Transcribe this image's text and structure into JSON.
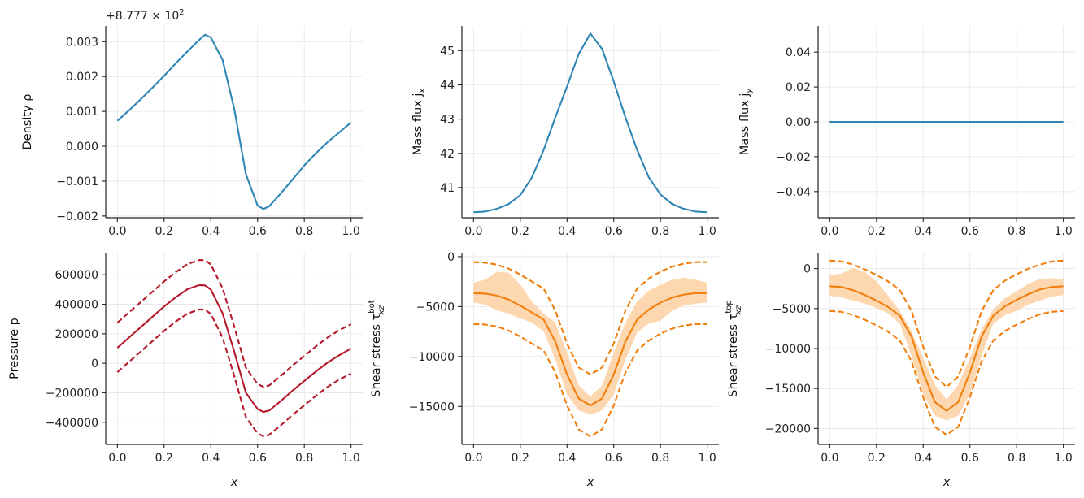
{
  "chart_data": [
    {
      "type": "line",
      "panel": "top-left",
      "ylabel": "Density ρ",
      "offset_text": "+8.777 × 10",
      "offset_exp": "2",
      "xlim": [
        -0.05,
        1.05
      ],
      "ylim": [
        -0.00205,
        0.00345
      ],
      "xticks": [
        0.0,
        0.2,
        0.4,
        0.6,
        0.8,
        1.0
      ],
      "xtick_labels": [
        "0.0",
        "0.2",
        "0.4",
        "0.6",
        "0.8",
        "1.0"
      ],
      "yticks": [
        -0.002,
        -0.001,
        0.0,
        0.001,
        0.002,
        0.003
      ],
      "ytick_labels": [
        "−0.002",
        "−0.001",
        "0.000",
        "0.001",
        "0.002",
        "0.003"
      ],
      "grid": true,
      "series": [
        {
          "style": "solid",
          "color": "#2e86b4",
          "x": [
            0.0,
            0.05,
            0.1,
            0.15,
            0.2,
            0.25,
            0.3,
            0.35,
            0.375,
            0.4,
            0.45,
            0.5,
            0.55,
            0.6,
            0.625,
            0.65,
            0.7,
            0.75,
            0.8,
            0.85,
            0.9,
            0.95,
            1.0
          ],
          "y": [
            0.00073,
            0.00103,
            0.00135,
            0.00168,
            0.00202,
            0.00238,
            0.00272,
            0.00305,
            0.0032,
            0.00312,
            0.00248,
            0.00108,
            -0.0008,
            -0.0017,
            -0.0018,
            -0.00172,
            -0.00135,
            -0.00095,
            -0.00055,
            -0.0002,
            0.00012,
            0.0004,
            0.00068
          ]
        }
      ]
    },
    {
      "type": "line",
      "panel": "top-middle",
      "ylabel": "Mass flux j",
      "ylabel_sub": "x",
      "xlim": [
        -0.05,
        1.05
      ],
      "ylim": [
        40.12,
        45.72
      ],
      "xticks": [
        0.0,
        0.2,
        0.4,
        0.6,
        0.8,
        1.0
      ],
      "xtick_labels": [
        "0.0",
        "0.2",
        "0.4",
        "0.6",
        "0.8",
        "1.0"
      ],
      "yticks": [
        41,
        42,
        43,
        44,
        45
      ],
      "ytick_labels": [
        "41",
        "42",
        "43",
        "44",
        "45"
      ],
      "grid": true,
      "series": [
        {
          "style": "solid",
          "color": "#2e86b4",
          "x": [
            0.0,
            0.05,
            0.1,
            0.15,
            0.2,
            0.25,
            0.3,
            0.35,
            0.4,
            0.45,
            0.5,
            0.55,
            0.6,
            0.65,
            0.7,
            0.75,
            0.8,
            0.85,
            0.9,
            0.95,
            1.0
          ],
          "y": [
            40.28,
            40.3,
            40.38,
            40.52,
            40.78,
            41.3,
            42.1,
            43.05,
            43.95,
            44.9,
            45.5,
            45.05,
            44.1,
            43.05,
            42.1,
            41.3,
            40.8,
            40.52,
            40.38,
            40.3,
            40.28
          ]
        }
      ]
    },
    {
      "type": "line",
      "panel": "top-right",
      "ylabel": "Mass flux j",
      "ylabel_sub": "y",
      "xlim": [
        -0.05,
        1.05
      ],
      "ylim": [
        -0.055,
        0.055
      ],
      "xticks": [
        0.0,
        0.2,
        0.4,
        0.6,
        0.8,
        1.0
      ],
      "xtick_labels": [
        "0.0",
        "0.2",
        "0.4",
        "0.6",
        "0.8",
        "1.0"
      ],
      "yticks": [
        -0.04,
        -0.02,
        0.0,
        0.02,
        0.04
      ],
      "ytick_labels": [
        "−0.04",
        "−0.02",
        "0.00",
        "0.02",
        "0.04"
      ],
      "grid": true,
      "series": [
        {
          "style": "solid",
          "color": "#2e86b4",
          "x": [
            0.0,
            1.0
          ],
          "y": [
            0.0,
            0.0
          ]
        }
      ]
    },
    {
      "type": "line",
      "panel": "bottom-left",
      "ylabel": "Pressure p",
      "xlabel": "x",
      "xlim": [
        -0.05,
        1.05
      ],
      "ylim": [
        -550000,
        750000
      ],
      "xticks": [
        0.0,
        0.2,
        0.4,
        0.6,
        0.8,
        1.0
      ],
      "xtick_labels": [
        "0.0",
        "0.2",
        "0.4",
        "0.6",
        "0.8",
        "1.0"
      ],
      "yticks": [
        -400000,
        -200000,
        0,
        200000,
        400000,
        600000
      ],
      "ytick_labels": [
        "−400000",
        "−200000",
        "0",
        "200000",
        "400000",
        "600000"
      ],
      "grid": true,
      "series": [
        {
          "style": "solid",
          "color": "#b5182b",
          "x": [
            0.0,
            0.05,
            0.1,
            0.15,
            0.2,
            0.25,
            0.3,
            0.35,
            0.375,
            0.4,
            0.45,
            0.5,
            0.55,
            0.6,
            0.625,
            0.65,
            0.7,
            0.75,
            0.8,
            0.85,
            0.9,
            0.95,
            1.0
          ],
          "y": [
            105000,
            175000,
            245000,
            315000,
            385000,
            448000,
            502000,
            530000,
            528000,
            500000,
            340000,
            80000,
            -200000,
            -310000,
            -330000,
            -320000,
            -255000,
            -185000,
            -120000,
            -55000,
            5000,
            55000,
            100000
          ]
        },
        {
          "style": "dashed",
          "color": "#b5182b",
          "x": [
            0.0,
            0.05,
            0.1,
            0.15,
            0.2,
            0.25,
            0.3,
            0.35,
            0.375,
            0.4,
            0.45,
            0.5,
            0.55,
            0.6,
            0.625,
            0.65,
            0.7,
            0.75,
            0.8,
            0.85,
            0.9,
            0.95,
            1.0
          ],
          "y": [
            275000,
            345000,
            415000,
            485000,
            555000,
            618000,
            672000,
            700000,
            698000,
            670000,
            510000,
            250000,
            -30000,
            -140000,
            -160000,
            -150000,
            -85000,
            -15000,
            50000,
            115000,
            175000,
            225000,
            265000
          ]
        },
        {
          "style": "dashed",
          "color": "#b5182b",
          "x": [
            0.0,
            0.05,
            0.1,
            0.15,
            0.2,
            0.25,
            0.3,
            0.35,
            0.375,
            0.4,
            0.45,
            0.5,
            0.55,
            0.6,
            0.625,
            0.65,
            0.7,
            0.75,
            0.8,
            0.85,
            0.9,
            0.95,
            1.0
          ],
          "y": [
            -60000,
            10000,
            80000,
            150000,
            220000,
            283000,
            337000,
            365000,
            363000,
            335000,
            175000,
            -85000,
            -365000,
            -475000,
            -495000,
            -485000,
            -420000,
            -350000,
            -285000,
            -220000,
            -160000,
            -110000,
            -70000
          ]
        }
      ]
    },
    {
      "type": "line",
      "panel": "bottom-middle",
      "ylabel": "Shear stress τ",
      "ylabel_sub": "xz",
      "ylabel_sup": "bot",
      "xlabel": "x",
      "xlim": [
        -0.05,
        1.05
      ],
      "ylim": [
        -18800,
        400
      ],
      "xticks": [
        0.0,
        0.2,
        0.4,
        0.6,
        0.8,
        1.0
      ],
      "xtick_labels": [
        "0.0",
        "0.2",
        "0.4",
        "0.6",
        "0.8",
        "1.0"
      ],
      "yticks": [
        -15000,
        -10000,
        -5000,
        0
      ],
      "ytick_labels": [
        "−15000",
        "−10000",
        "−5000",
        "0"
      ],
      "grid": true,
      "band": {
        "color": "#fdd0a2",
        "x": [
          0.0,
          0.05,
          0.1,
          0.15,
          0.2,
          0.25,
          0.3,
          0.35,
          0.4,
          0.45,
          0.5,
          0.55,
          0.6,
          0.65,
          0.7,
          0.75,
          0.8,
          0.85,
          0.9,
          0.95,
          1.0
        ],
        "upper": [
          -2600,
          -2300,
          -1500,
          -1600,
          -2800,
          -4500,
          -5700,
          -6600,
          -9600,
          -12900,
          -14000,
          -12900,
          -9600,
          -6600,
          -4500,
          -3400,
          -2800,
          -2300,
          -2100,
          -2300,
          -2600
        ],
        "lower": [
          -4600,
          -4800,
          -5400,
          -5700,
          -6200,
          -6600,
          -7500,
          -10300,
          -13800,
          -15400,
          -15800,
          -15400,
          -13800,
          -10300,
          -7600,
          -6700,
          -6400,
          -5400,
          -4900,
          -4700,
          -4600
        ]
      },
      "series": [
        {
          "style": "solid",
          "color": "#f07f0e",
          "x": [
            0.0,
            0.05,
            0.1,
            0.15,
            0.2,
            0.25,
            0.3,
            0.35,
            0.4,
            0.45,
            0.5,
            0.55,
            0.6,
            0.65,
            0.7,
            0.75,
            0.8,
            0.85,
            0.9,
            0.95,
            1.0
          ],
          "y": [
            -3650,
            -3700,
            -3900,
            -4300,
            -4900,
            -5600,
            -6300,
            -8500,
            -11800,
            -14200,
            -14900,
            -14200,
            -11800,
            -8500,
            -6300,
            -5300,
            -4600,
            -4100,
            -3800,
            -3650,
            -3650
          ]
        },
        {
          "style": "dashed",
          "color": "#f07f0e",
          "x": [
            0.0,
            0.05,
            0.1,
            0.15,
            0.2,
            0.25,
            0.3,
            0.35,
            0.4,
            0.45,
            0.5,
            0.55,
            0.6,
            0.65,
            0.7,
            0.75,
            0.8,
            0.85,
            0.9,
            0.95,
            1.0
          ],
          "y": [
            -550,
            -600,
            -800,
            -1200,
            -1800,
            -2500,
            -3200,
            -5400,
            -8700,
            -11100,
            -11800,
            -11100,
            -8700,
            -5400,
            -3200,
            -2200,
            -1500,
            -1000,
            -700,
            -550,
            -550
          ]
        },
        {
          "style": "dashed",
          "color": "#f07f0e",
          "x": [
            0.0,
            0.05,
            0.1,
            0.15,
            0.2,
            0.25,
            0.3,
            0.35,
            0.4,
            0.45,
            0.5,
            0.55,
            0.6,
            0.65,
            0.7,
            0.75,
            0.8,
            0.85,
            0.9,
            0.95,
            1.0
          ],
          "y": [
            -6750,
            -6800,
            -7000,
            -7400,
            -8000,
            -8700,
            -9400,
            -11600,
            -14900,
            -17300,
            -18000,
            -17300,
            -14900,
            -11600,
            -9400,
            -8400,
            -7700,
            -7200,
            -6900,
            -6750,
            -6750
          ]
        }
      ]
    },
    {
      "type": "line",
      "panel": "bottom-right",
      "ylabel": "Shear stress τ",
      "ylabel_sub": "xz",
      "ylabel_sup": "top",
      "xlabel": "x",
      "xlim": [
        -0.05,
        1.05
      ],
      "ylim": [
        -22000,
        2000
      ],
      "xticks": [
        0.0,
        0.2,
        0.4,
        0.6,
        0.8,
        1.0
      ],
      "xtick_labels": [
        "0.0",
        "0.2",
        "0.4",
        "0.6",
        "0.8",
        "1.0"
      ],
      "yticks": [
        -20000,
        -15000,
        -10000,
        -5000,
        0
      ],
      "ytick_labels": [
        "−20000",
        "−15000",
        "−10000",
        "−5000",
        "0"
      ],
      "grid": true,
      "band": {
        "color": "#fdd0a2",
        "x": [
          0.0,
          0.05,
          0.1,
          0.15,
          0.2,
          0.25,
          0.3,
          0.35,
          0.4,
          0.45,
          0.5,
          0.55,
          0.6,
          0.65,
          0.7,
          0.75,
          0.8,
          0.85,
          0.9,
          0.95,
          1.0
        ],
        "upper": [
          -900,
          -600,
          100,
          -400,
          -1600,
          -3400,
          -5300,
          -7800,
          -11200,
          -14500,
          -16400,
          -14500,
          -11200,
          -7600,
          -5100,
          -3700,
          -2800,
          -1900,
          -1300,
          -1200,
          -1300
        ],
        "lower": [
          -3400,
          -3600,
          -4000,
          -4400,
          -4900,
          -5600,
          -6900,
          -10900,
          -15700,
          -18400,
          -19000,
          -18400,
          -15700,
          -10900,
          -6900,
          -5800,
          -5300,
          -4500,
          -4000,
          -3500,
          -3300
        ]
      },
      "series": [
        {
          "style": "solid",
          "color": "#f07f0e",
          "x": [
            0.0,
            0.05,
            0.1,
            0.15,
            0.2,
            0.25,
            0.3,
            0.35,
            0.4,
            0.45,
            0.5,
            0.55,
            0.6,
            0.65,
            0.7,
            0.75,
            0.8,
            0.85,
            0.9,
            0.95,
            1.0
          ],
          "y": [
            -2200,
            -2300,
            -2700,
            -3300,
            -4000,
            -4800,
            -5900,
            -8500,
            -13000,
            -16700,
            -17800,
            -16700,
            -13000,
            -8500,
            -5900,
            -4700,
            -3900,
            -3200,
            -2600,
            -2300,
            -2200
          ]
        },
        {
          "style": "dashed",
          "color": "#f07f0e",
          "x": [
            0.0,
            0.05,
            0.1,
            0.15,
            0.2,
            0.25,
            0.3,
            0.35,
            0.4,
            0.45,
            0.5,
            0.55,
            0.6,
            0.65,
            0.7,
            0.75,
            0.8,
            0.85,
            0.9,
            0.95,
            1.0
          ],
          "y": [
            1000,
            900,
            500,
            -100,
            -800,
            -1600,
            -2700,
            -5300,
            -9800,
            -13500,
            -14800,
            -13500,
            -9800,
            -5300,
            -2700,
            -1500,
            -700,
            0,
            500,
            900,
            1000
          ]
        },
        {
          "style": "dashed",
          "color": "#f07f0e",
          "x": [
            0.0,
            0.05,
            0.1,
            0.15,
            0.2,
            0.25,
            0.3,
            0.35,
            0.4,
            0.45,
            0.5,
            0.55,
            0.6,
            0.65,
            0.7,
            0.75,
            0.8,
            0.85,
            0.9,
            0.95,
            1.0
          ],
          "y": [
            -5300,
            -5400,
            -5800,
            -6400,
            -7100,
            -7900,
            -9000,
            -11600,
            -16100,
            -19800,
            -20800,
            -19800,
            -16100,
            -11600,
            -9000,
            -7800,
            -7000,
            -6300,
            -5700,
            -5400,
            -5300
          ]
        }
      ]
    }
  ]
}
